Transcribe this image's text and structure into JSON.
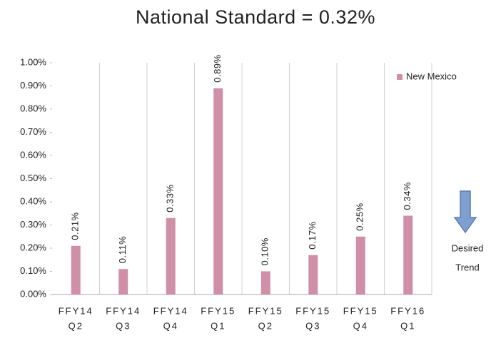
{
  "chart_data": {
    "type": "bar",
    "title": "National Standard = 0.32%",
    "categories": [
      [
        "FFY14",
        "Q2"
      ],
      [
        "FFY14",
        "Q3"
      ],
      [
        "FFY14",
        "Q4"
      ],
      [
        "FFY15",
        "Q1"
      ],
      [
        "FFY15",
        "Q2"
      ],
      [
        "FFY15",
        "Q3"
      ],
      [
        "FFY15",
        "Q4"
      ],
      [
        "FFY16",
        "Q1"
      ]
    ],
    "series": [
      {
        "name": "New Mexico",
        "color": "#cf8fa7",
        "values": [
          0.21,
          0.11,
          0.33,
          0.89,
          0.1,
          0.17,
          0.25,
          0.34
        ],
        "value_labels": [
          "0.21%",
          "0.11%",
          "0.33%",
          "0.89%",
          "0.10%",
          "0.17%",
          "0.25%",
          "0.34%"
        ]
      }
    ],
    "ylim": [
      0,
      1.0
    ],
    "yticks": [
      {
        "value": 0,
        "label": "0.00%"
      },
      {
        "value": 0.1,
        "label": "0.10%"
      },
      {
        "value": 0.2,
        "label": "0.20%"
      },
      {
        "value": 0.3,
        "label": "0.30%"
      },
      {
        "value": 0.4,
        "label": "0.40%"
      },
      {
        "value": 0.5,
        "label": "0.50%"
      },
      {
        "value": 0.6,
        "label": "0.60%"
      },
      {
        "value": 0.7,
        "label": "0.70%"
      },
      {
        "value": 0.8,
        "label": "0.80%"
      },
      {
        "value": 0.9,
        "label": "0.90%"
      },
      {
        "value": 1.0,
        "label": "1.00%"
      }
    ],
    "legend": "top-right",
    "annotation": [
      "Desired",
      "Trend"
    ]
  }
}
